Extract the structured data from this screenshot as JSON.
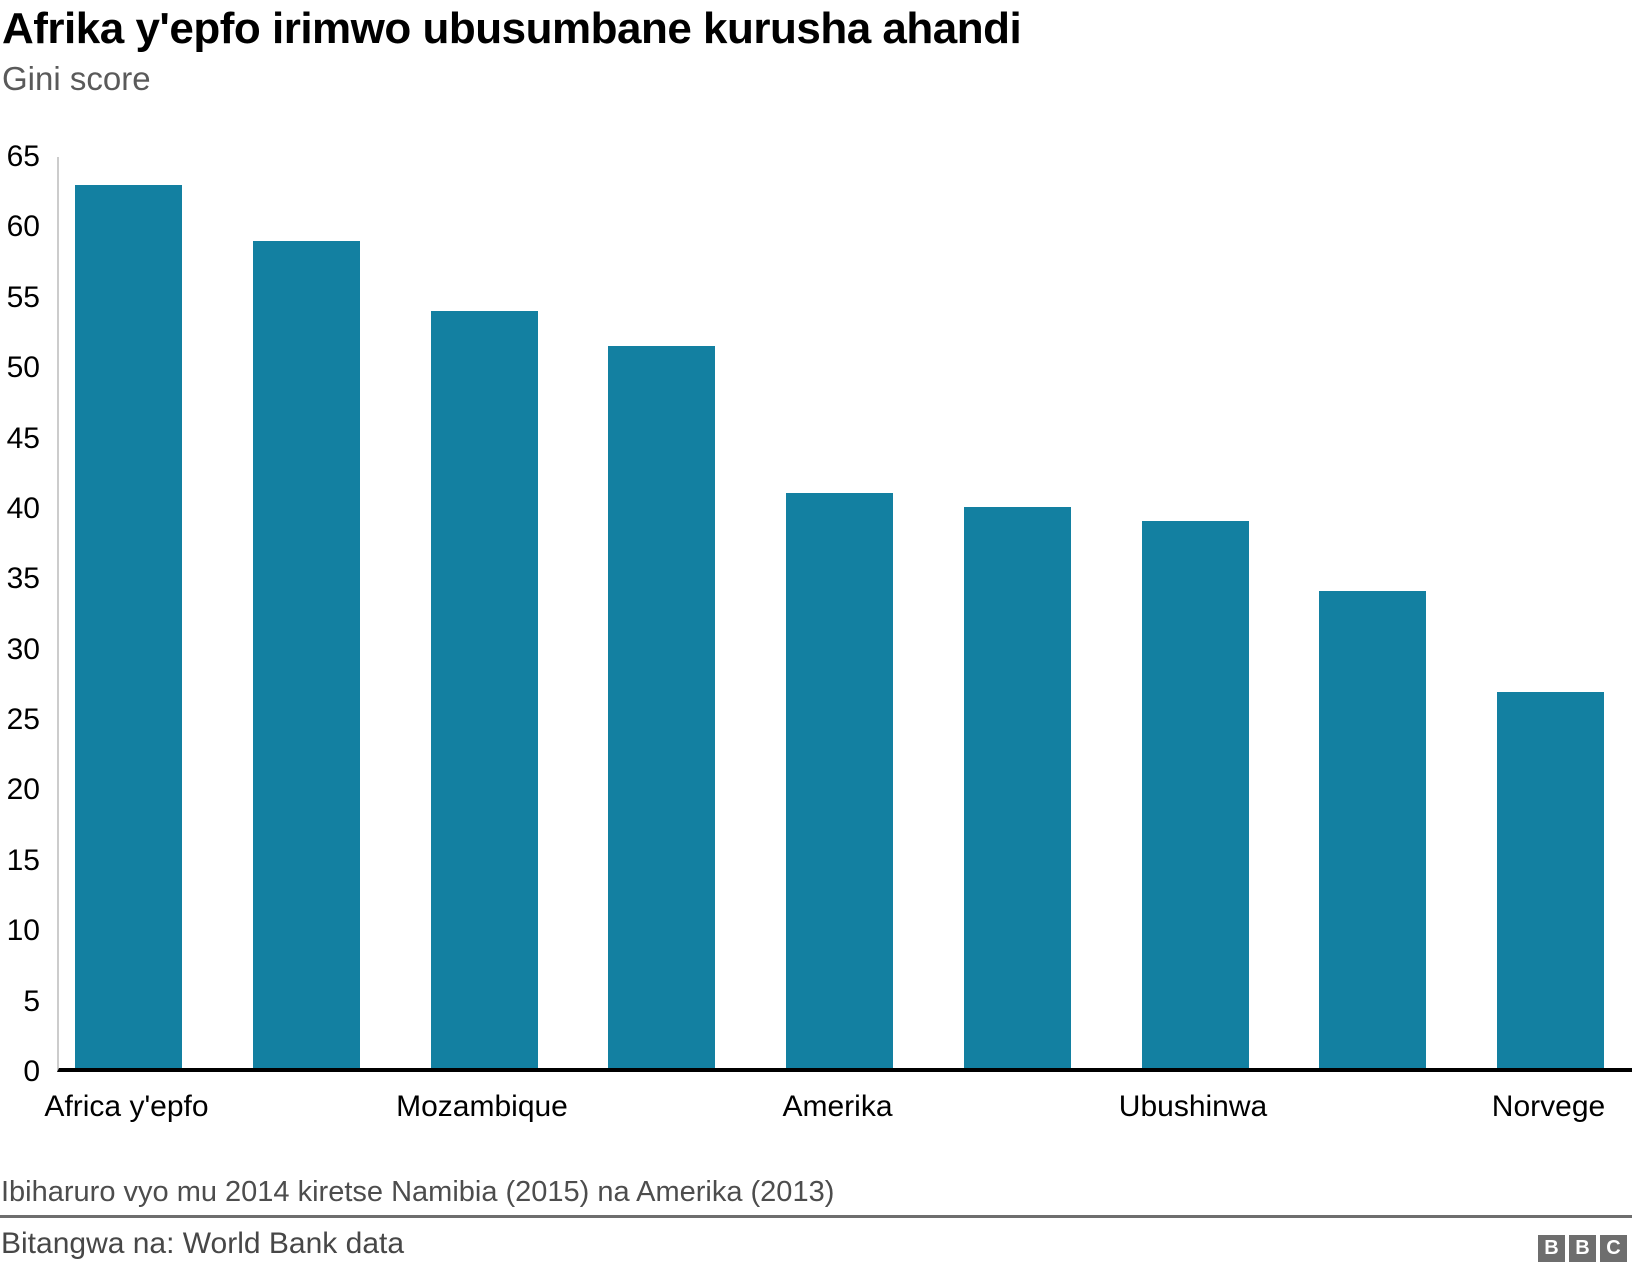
{
  "header": {
    "title": "Afrika y'epfo irimwo ubusumbane kurusha ahandi",
    "subtitle": "Gini score"
  },
  "chart_data": {
    "type": "bar",
    "title": "Afrika y'epfo irimwo ubusumbane kurusha ahandi",
    "subtitle": "Gini score",
    "ylabel": "Gini score",
    "xlabel": "",
    "ylim": [
      0,
      65
    ],
    "ytick_step": 5,
    "yticks": [
      0,
      5,
      10,
      15,
      20,
      25,
      30,
      35,
      40,
      45,
      50,
      55,
      60,
      65
    ],
    "gridlines": "off",
    "legend": "none",
    "bar_color": "#1380a1",
    "axis_line_color": "#000000",
    "y_axis_line_color": "#cccccc",
    "bars": [
      {
        "label": "Africa y'epfo",
        "value": 63,
        "tick_shown": true
      },
      {
        "label": "",
        "value": 59,
        "tick_shown": false
      },
      {
        "label": "Mozambique",
        "value": 54,
        "tick_shown": true
      },
      {
        "label": "",
        "value": 51.5,
        "tick_shown": false
      },
      {
        "label": "Amerika",
        "value": 41,
        "tick_shown": true
      },
      {
        "label": "",
        "value": 40,
        "tick_shown": false
      },
      {
        "label": "Ubushinwa",
        "value": 39,
        "tick_shown": true
      },
      {
        "label": "",
        "value": 34,
        "tick_shown": false
      },
      {
        "label": "Norvege",
        "value": 26.8,
        "tick_shown": true
      }
    ]
  },
  "footer": {
    "note": "Ibiharuro vyo mu 2014 kiretse Namibia (2015) na Amerika (2013)",
    "source": "Bitangwa na: World Bank data",
    "logo": {
      "letters": [
        "B",
        "B",
        "C"
      ],
      "box_color": "#6e6e6e",
      "letter_color": "#ffffff"
    }
  }
}
